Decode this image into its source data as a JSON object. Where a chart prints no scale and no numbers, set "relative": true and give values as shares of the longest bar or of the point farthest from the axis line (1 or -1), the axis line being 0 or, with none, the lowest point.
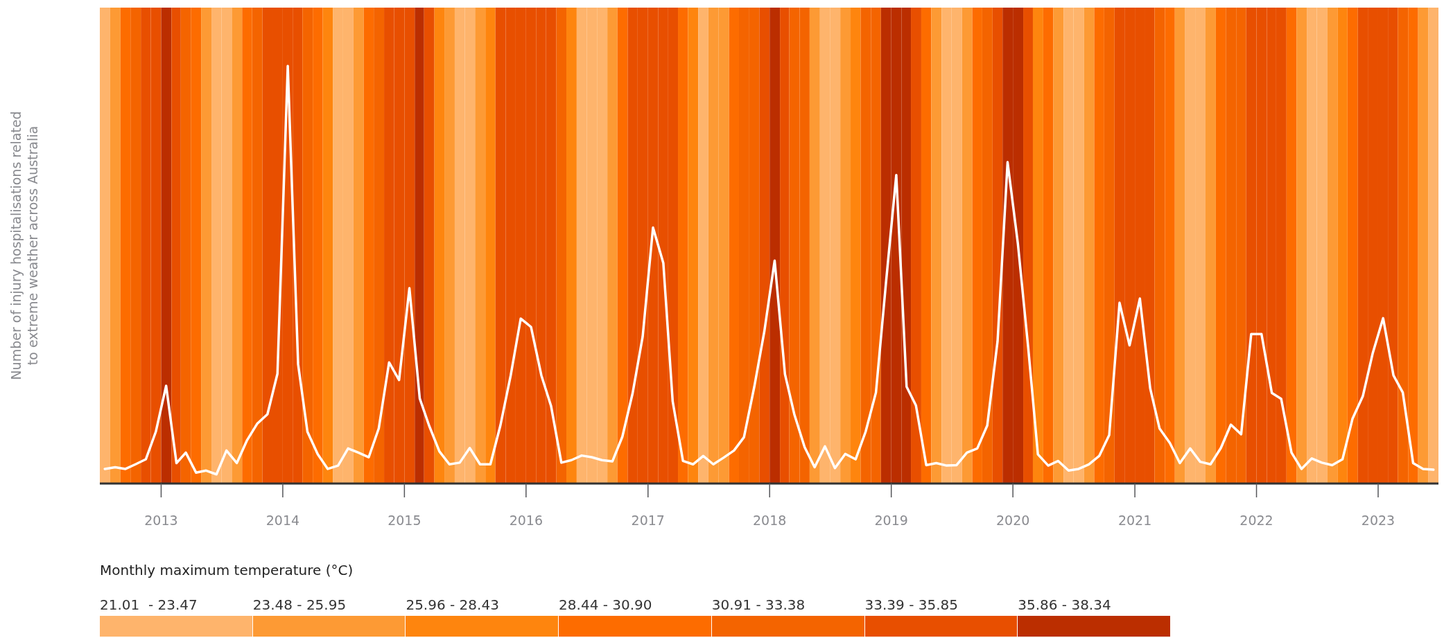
{
  "chart_data": {
    "type": "line",
    "relative": true,
    "ylabel": "Number of injury hospitalisations related\nto extreme weather across Australia",
    "xlim": [
      "2012-07-01",
      "2023-07-01"
    ],
    "xticks": [
      {
        "value": "2013-01-01",
        "label": "2013"
      },
      {
        "value": "2014-01-01",
        "label": "2014"
      },
      {
        "value": "2015-01-01",
        "label": "2015"
      },
      {
        "value": "2016-01-01",
        "label": "2016"
      },
      {
        "value": "2017-01-01",
        "label": "2017"
      },
      {
        "value": "2018-01-01",
        "label": "2018"
      },
      {
        "value": "2019-01-01",
        "label": "2019"
      },
      {
        "value": "2020-01-01",
        "label": "2020"
      },
      {
        "value": "2021-01-01",
        "label": "2021"
      },
      {
        "value": "2022-01-01",
        "label": "2022"
      },
      {
        "value": "2023-01-01",
        "label": "2023"
      }
    ],
    "x": [
      "2012-07-16",
      "2012-08-16",
      "2012-09-16",
      "2012-10-16",
      "2012-11-16",
      "2012-12-16",
      "2013-01-16",
      "2013-02-16",
      "2013-03-16",
      "2013-04-16",
      "2013-05-16",
      "2013-06-16",
      "2013-07-16",
      "2013-08-16",
      "2013-09-16",
      "2013-10-16",
      "2013-11-16",
      "2013-12-16",
      "2014-01-16",
      "2014-02-16",
      "2014-03-16",
      "2014-04-16",
      "2014-05-16",
      "2014-06-16",
      "2014-07-16",
      "2014-08-16",
      "2014-09-16",
      "2014-10-16",
      "2014-11-16",
      "2014-12-16",
      "2015-01-16",
      "2015-02-16",
      "2015-03-16",
      "2015-04-16",
      "2015-05-16",
      "2015-06-16",
      "2015-07-16",
      "2015-08-16",
      "2015-09-16",
      "2015-10-16",
      "2015-11-16",
      "2015-12-16",
      "2016-01-16",
      "2016-02-16",
      "2016-03-16",
      "2016-04-16",
      "2016-05-16",
      "2016-06-16",
      "2016-07-16",
      "2016-08-16",
      "2016-09-16",
      "2016-10-16",
      "2016-11-16",
      "2016-12-16",
      "2017-01-16",
      "2017-02-16",
      "2017-03-16",
      "2017-04-16",
      "2017-05-16",
      "2017-06-16",
      "2017-07-16",
      "2017-08-16",
      "2017-09-16",
      "2017-10-16",
      "2017-11-16",
      "2017-12-16",
      "2018-01-16",
      "2018-02-16",
      "2018-03-16",
      "2018-04-16",
      "2018-05-16",
      "2018-06-16",
      "2018-07-16",
      "2018-08-16",
      "2018-09-16",
      "2018-10-16",
      "2018-11-16",
      "2018-12-16",
      "2019-01-16",
      "2019-02-16",
      "2019-03-16",
      "2019-04-16",
      "2019-05-16",
      "2019-06-16",
      "2019-07-16",
      "2019-08-16",
      "2019-09-16",
      "2019-10-16",
      "2019-11-16",
      "2019-12-16",
      "2020-01-16",
      "2020-02-16",
      "2020-03-16",
      "2020-04-16",
      "2020-05-16",
      "2020-06-16",
      "2020-07-16",
      "2020-08-16",
      "2020-09-16",
      "2020-10-16",
      "2020-11-16",
      "2020-12-16",
      "2021-01-16",
      "2021-02-16",
      "2021-03-16",
      "2021-04-16",
      "2021-05-16",
      "2021-06-16",
      "2021-07-16",
      "2021-08-16",
      "2021-09-16",
      "2021-10-16",
      "2021-11-16",
      "2021-12-16",
      "2022-01-16",
      "2022-02-16",
      "2022-03-16",
      "2022-04-16",
      "2022-05-16",
      "2022-06-16",
      "2022-07-16",
      "2022-08-16",
      "2022-09-16",
      "2022-10-16",
      "2022-11-16",
      "2022-12-16",
      "2023-01-16",
      "2023-02-16",
      "2023-03-16",
      "2023-04-16",
      "2023-05-16",
      "2023-06-16"
    ],
    "series": [
      {
        "color": "#ffffff",
        "values": [
          0.035,
          0.039,
          0.035,
          0.046,
          0.058,
          0.124,
          0.234,
          0.049,
          0.074,
          0.026,
          0.031,
          0.022,
          0.079,
          0.049,
          0.104,
          0.143,
          0.166,
          0.263,
          1,
          0.286,
          0.124,
          0.07,
          0.035,
          0.043,
          0.084,
          0.074,
          0.063,
          0.132,
          0.29,
          0.248,
          0.468,
          0.204,
          0.139,
          0.077,
          0.046,
          0.05,
          0.085,
          0.046,
          0.046,
          0.139,
          0.259,
          0.395,
          0.375,
          0.259,
          0.186,
          0.05,
          0.056,
          0.067,
          0.063,
          0.056,
          0.053,
          0.112,
          0.217,
          0.352,
          0.613,
          0.528,
          0.197,
          0.054,
          0.046,
          0.066,
          0.046,
          0.062,
          0.079,
          0.111,
          0.232,
          0.364,
          0.534,
          0.262,
          0.166,
          0.087,
          0.039,
          0.089,
          0.037,
          0.071,
          0.058,
          0.124,
          0.218,
          0.48,
          0.739,
          0.232,
          0.187,
          0.044,
          0.049,
          0.043,
          0.044,
          0.074,
          0.084,
          0.139,
          0.341,
          0.77,
          0.574,
          0.325,
          0.07,
          0.043,
          0.054,
          0.031,
          0.035,
          0.046,
          0.066,
          0.116,
          0.433,
          0.331,
          0.443,
          0.228,
          0.132,
          0.097,
          0.049,
          0.084,
          0.052,
          0.046,
          0.085,
          0.141,
          0.118,
          0.358,
          0.358,
          0.217,
          0.203,
          0.074,
          0.035,
          0.06,
          0.05,
          0.044,
          0.058,
          0.155,
          0.209,
          0.313,
          0.396,
          0.259,
          0.218,
          0.049,
          0.035,
          0.033
        ]
      }
    ],
    "annotations": [
      "Monthly maximum temperature (°C)",
      "21.01  - 23.47",
      "23.48 - 25.95",
      "25.96 - 28.43",
      "28.44 - 30.90",
      "30.91 - 33.38",
      "33.39 - 35.85",
      "35.86 - 38.34"
    ],
    "colors": [
      "#feb46c",
      "#fd9a34",
      "#fe850e",
      "#fd6c00",
      "#f46400",
      "#e84f00",
      "#bb2e00"
    ],
    "bands": [
      {
        "axis": "x",
        "from": "2012-07-01",
        "to": "2012-08-01",
        "color": "#feb46c"
      },
      {
        "axis": "x",
        "from": "2012-08-01",
        "to": "2012-09-01",
        "color": "#fd9a34"
      },
      {
        "axis": "x",
        "from": "2012-09-01",
        "to": "2012-10-01",
        "color": "#fd6c00"
      },
      {
        "axis": "x",
        "from": "2012-10-01",
        "to": "2012-11-01",
        "color": "#f46400"
      },
      {
        "axis": "x",
        "from": "2012-11-01",
        "to": "2012-12-01",
        "color": "#e84f00"
      },
      {
        "axis": "x",
        "from": "2012-12-01",
        "to": "2013-01-01",
        "color": "#e84f00"
      },
      {
        "axis": "x",
        "from": "2013-01-01",
        "to": "2013-02-01",
        "color": "#bb2e00"
      },
      {
        "axis": "x",
        "from": "2013-02-01",
        "to": "2013-03-01",
        "color": "#e84f00"
      },
      {
        "axis": "x",
        "from": "2013-03-01",
        "to": "2013-04-01",
        "color": "#f46400"
      },
      {
        "axis": "x",
        "from": "2013-04-01",
        "to": "2013-05-01",
        "color": "#fd6c00"
      },
      {
        "axis": "x",
        "from": "2013-05-01",
        "to": "2013-06-01",
        "color": "#fd9a34"
      },
      {
        "axis": "x",
        "from": "2013-06-01",
        "to": "2013-07-01",
        "color": "#feb46c"
      },
      {
        "axis": "x",
        "from": "2013-07-01",
        "to": "2013-08-01",
        "color": "#feb46c"
      },
      {
        "axis": "x",
        "from": "2013-08-01",
        "to": "2013-09-01",
        "color": "#fd9a34"
      },
      {
        "axis": "x",
        "from": "2013-09-01",
        "to": "2013-10-01",
        "color": "#fd6c00"
      },
      {
        "axis": "x",
        "from": "2013-10-01",
        "to": "2013-11-01",
        "color": "#f46400"
      },
      {
        "axis": "x",
        "from": "2013-11-01",
        "to": "2013-12-01",
        "color": "#e84f00"
      },
      {
        "axis": "x",
        "from": "2013-12-01",
        "to": "2014-01-01",
        "color": "#e84f00"
      },
      {
        "axis": "x",
        "from": "2014-01-01",
        "to": "2014-02-01",
        "color": "#e84f00"
      },
      {
        "axis": "x",
        "from": "2014-02-01",
        "to": "2014-03-01",
        "color": "#e84f00"
      },
      {
        "axis": "x",
        "from": "2014-03-01",
        "to": "2014-04-01",
        "color": "#f46400"
      },
      {
        "axis": "x",
        "from": "2014-04-01",
        "to": "2014-05-01",
        "color": "#fd6c00"
      },
      {
        "axis": "x",
        "from": "2014-05-01",
        "to": "2014-06-01",
        "color": "#fe850e"
      },
      {
        "axis": "x",
        "from": "2014-06-01",
        "to": "2014-07-01",
        "color": "#feb46c"
      },
      {
        "axis": "x",
        "from": "2014-07-01",
        "to": "2014-08-01",
        "color": "#feb46c"
      },
      {
        "axis": "x",
        "from": "2014-08-01",
        "to": "2014-09-01",
        "color": "#fd9a34"
      },
      {
        "axis": "x",
        "from": "2014-09-01",
        "to": "2014-10-01",
        "color": "#fd6c00"
      },
      {
        "axis": "x",
        "from": "2014-10-01",
        "to": "2014-11-01",
        "color": "#f46400"
      },
      {
        "axis": "x",
        "from": "2014-11-01",
        "to": "2014-12-01",
        "color": "#e84f00"
      },
      {
        "axis": "x",
        "from": "2014-12-01",
        "to": "2015-01-01",
        "color": "#e84f00"
      },
      {
        "axis": "x",
        "from": "2015-01-01",
        "to": "2015-02-01",
        "color": "#e84f00"
      },
      {
        "axis": "x",
        "from": "2015-02-01",
        "to": "2015-03-01",
        "color": "#bb2e00"
      },
      {
        "axis": "x",
        "from": "2015-03-01",
        "to": "2015-04-01",
        "color": "#e84f00"
      },
      {
        "axis": "x",
        "from": "2015-04-01",
        "to": "2015-05-01",
        "color": "#fe850e"
      },
      {
        "axis": "x",
        "from": "2015-05-01",
        "to": "2015-06-01",
        "color": "#fd9a34"
      },
      {
        "axis": "x",
        "from": "2015-06-01",
        "to": "2015-07-01",
        "color": "#feb46c"
      },
      {
        "axis": "x",
        "from": "2015-07-01",
        "to": "2015-08-01",
        "color": "#feb46c"
      },
      {
        "axis": "x",
        "from": "2015-08-01",
        "to": "2015-09-01",
        "color": "#fd9a34"
      },
      {
        "axis": "x",
        "from": "2015-09-01",
        "to": "2015-10-01",
        "color": "#fe850e"
      },
      {
        "axis": "x",
        "from": "2015-10-01",
        "to": "2015-11-01",
        "color": "#e84f00"
      },
      {
        "axis": "x",
        "from": "2015-11-01",
        "to": "2015-12-01",
        "color": "#e84f00"
      },
      {
        "axis": "x",
        "from": "2015-12-01",
        "to": "2016-01-01",
        "color": "#e84f00"
      },
      {
        "axis": "x",
        "from": "2016-01-01",
        "to": "2016-02-01",
        "color": "#e84f00"
      },
      {
        "axis": "x",
        "from": "2016-02-01",
        "to": "2016-03-01",
        "color": "#e84f00"
      },
      {
        "axis": "x",
        "from": "2016-03-01",
        "to": "2016-04-01",
        "color": "#e84f00"
      },
      {
        "axis": "x",
        "from": "2016-04-01",
        "to": "2016-05-01",
        "color": "#f46400"
      },
      {
        "axis": "x",
        "from": "2016-05-01",
        "to": "2016-06-01",
        "color": "#fe850e"
      },
      {
        "axis": "x",
        "from": "2016-06-01",
        "to": "2016-07-01",
        "color": "#feb46c"
      },
      {
        "axis": "x",
        "from": "2016-07-01",
        "to": "2016-08-01",
        "color": "#feb46c"
      },
      {
        "axis": "x",
        "from": "2016-08-01",
        "to": "2016-09-01",
        "color": "#feb46c"
      },
      {
        "axis": "x",
        "from": "2016-09-01",
        "to": "2016-10-01",
        "color": "#fd9a34"
      },
      {
        "axis": "x",
        "from": "2016-10-01",
        "to": "2016-11-01",
        "color": "#fd6c00"
      },
      {
        "axis": "x",
        "from": "2016-11-01",
        "to": "2016-12-01",
        "color": "#e84f00"
      },
      {
        "axis": "x",
        "from": "2016-12-01",
        "to": "2017-01-01",
        "color": "#e84f00"
      },
      {
        "axis": "x",
        "from": "2017-01-01",
        "to": "2017-02-01",
        "color": "#e84f00"
      },
      {
        "axis": "x",
        "from": "2017-02-01",
        "to": "2017-03-01",
        "color": "#e84f00"
      },
      {
        "axis": "x",
        "from": "2017-03-01",
        "to": "2017-04-01",
        "color": "#e84f00"
      },
      {
        "axis": "x",
        "from": "2017-04-01",
        "to": "2017-05-01",
        "color": "#fd6c00"
      },
      {
        "axis": "x",
        "from": "2017-05-01",
        "to": "2017-06-01",
        "color": "#fe850e"
      },
      {
        "axis": "x",
        "from": "2017-06-01",
        "to": "2017-07-01",
        "color": "#feb46c"
      },
      {
        "axis": "x",
        "from": "2017-07-01",
        "to": "2017-08-01",
        "color": "#fd9a34"
      },
      {
        "axis": "x",
        "from": "2017-08-01",
        "to": "2017-09-01",
        "color": "#fd9a34"
      },
      {
        "axis": "x",
        "from": "2017-09-01",
        "to": "2017-10-01",
        "color": "#fd6c00"
      },
      {
        "axis": "x",
        "from": "2017-10-01",
        "to": "2017-11-01",
        "color": "#f46400"
      },
      {
        "axis": "x",
        "from": "2017-11-01",
        "to": "2017-12-01",
        "color": "#f46400"
      },
      {
        "axis": "x",
        "from": "2017-12-01",
        "to": "2018-01-01",
        "color": "#e84f00"
      },
      {
        "axis": "x",
        "from": "2018-01-01",
        "to": "2018-02-01",
        "color": "#bb2e00"
      },
      {
        "axis": "x",
        "from": "2018-02-01",
        "to": "2018-03-01",
        "color": "#e84f00"
      },
      {
        "axis": "x",
        "from": "2018-03-01",
        "to": "2018-04-01",
        "color": "#f46400"
      },
      {
        "axis": "x",
        "from": "2018-04-01",
        "to": "2018-05-01",
        "color": "#f46400"
      },
      {
        "axis": "x",
        "from": "2018-05-01",
        "to": "2018-06-01",
        "color": "#fd9a34"
      },
      {
        "axis": "x",
        "from": "2018-06-01",
        "to": "2018-07-01",
        "color": "#feb46c"
      },
      {
        "axis": "x",
        "from": "2018-07-01",
        "to": "2018-08-01",
        "color": "#feb46c"
      },
      {
        "axis": "x",
        "from": "2018-08-01",
        "to": "2018-09-01",
        "color": "#fd9a34"
      },
      {
        "axis": "x",
        "from": "2018-09-01",
        "to": "2018-10-01",
        "color": "#fe850e"
      },
      {
        "axis": "x",
        "from": "2018-10-01",
        "to": "2018-11-01",
        "color": "#f46400"
      },
      {
        "axis": "x",
        "from": "2018-11-01",
        "to": "2018-12-01",
        "color": "#f46400"
      },
      {
        "axis": "x",
        "from": "2018-12-01",
        "to": "2019-01-01",
        "color": "#bb2e00"
      },
      {
        "axis": "x",
        "from": "2019-01-01",
        "to": "2019-02-01",
        "color": "#bb2e00"
      },
      {
        "axis": "x",
        "from": "2019-02-01",
        "to": "2019-03-01",
        "color": "#bb2e00"
      },
      {
        "axis": "x",
        "from": "2019-03-01",
        "to": "2019-04-01",
        "color": "#e84f00"
      },
      {
        "axis": "x",
        "from": "2019-04-01",
        "to": "2019-05-01",
        "color": "#fd6c00"
      },
      {
        "axis": "x",
        "from": "2019-05-01",
        "to": "2019-06-01",
        "color": "#fd9a34"
      },
      {
        "axis": "x",
        "from": "2019-06-01",
        "to": "2019-07-01",
        "color": "#feb46c"
      },
      {
        "axis": "x",
        "from": "2019-07-01",
        "to": "2019-08-01",
        "color": "#feb46c"
      },
      {
        "axis": "x",
        "from": "2019-08-01",
        "to": "2019-09-01",
        "color": "#fd9a34"
      },
      {
        "axis": "x",
        "from": "2019-09-01",
        "to": "2019-10-01",
        "color": "#fd6c00"
      },
      {
        "axis": "x",
        "from": "2019-10-01",
        "to": "2019-11-01",
        "color": "#f46400"
      },
      {
        "axis": "x",
        "from": "2019-11-01",
        "to": "2019-12-01",
        "color": "#e84f00"
      },
      {
        "axis": "x",
        "from": "2019-12-01",
        "to": "2020-01-01",
        "color": "#bb2e00"
      },
      {
        "axis": "x",
        "from": "2020-01-01",
        "to": "2020-02-01",
        "color": "#bb2e00"
      },
      {
        "axis": "x",
        "from": "2020-02-01",
        "to": "2020-03-01",
        "color": "#e84f00"
      },
      {
        "axis": "x",
        "from": "2020-03-01",
        "to": "2020-04-01",
        "color": "#fe850e"
      },
      {
        "axis": "x",
        "from": "2020-04-01",
        "to": "2020-05-01",
        "color": "#fd6c00"
      },
      {
        "axis": "x",
        "from": "2020-05-01",
        "to": "2020-06-01",
        "color": "#fd9a34"
      },
      {
        "axis": "x",
        "from": "2020-06-01",
        "to": "2020-07-01",
        "color": "#feb46c"
      },
      {
        "axis": "x",
        "from": "2020-07-01",
        "to": "2020-08-01",
        "color": "#feb46c"
      },
      {
        "axis": "x",
        "from": "2020-08-01",
        "to": "2020-09-01",
        "color": "#fd9a34"
      },
      {
        "axis": "x",
        "from": "2020-09-01",
        "to": "2020-10-01",
        "color": "#fd6c00"
      },
      {
        "axis": "x",
        "from": "2020-10-01",
        "to": "2020-11-01",
        "color": "#f46400"
      },
      {
        "axis": "x",
        "from": "2020-11-01",
        "to": "2020-12-01",
        "color": "#e84f00"
      },
      {
        "axis": "x",
        "from": "2020-12-01",
        "to": "2021-01-01",
        "color": "#e84f00"
      },
      {
        "axis": "x",
        "from": "2021-01-01",
        "to": "2021-02-01",
        "color": "#e84f00"
      },
      {
        "axis": "x",
        "from": "2021-02-01",
        "to": "2021-03-01",
        "color": "#e84f00"
      },
      {
        "axis": "x",
        "from": "2021-03-01",
        "to": "2021-04-01",
        "color": "#f46400"
      },
      {
        "axis": "x",
        "from": "2021-04-01",
        "to": "2021-05-01",
        "color": "#fd6c00"
      },
      {
        "axis": "x",
        "from": "2021-05-01",
        "to": "2021-06-01",
        "color": "#fd9a34"
      },
      {
        "axis": "x",
        "from": "2021-06-01",
        "to": "2021-07-01",
        "color": "#feb46c"
      },
      {
        "axis": "x",
        "from": "2021-07-01",
        "to": "2021-08-01",
        "color": "#feb46c"
      },
      {
        "axis": "x",
        "from": "2021-08-01",
        "to": "2021-09-01",
        "color": "#fd9a34"
      },
      {
        "axis": "x",
        "from": "2021-09-01",
        "to": "2021-10-01",
        "color": "#fd6c00"
      },
      {
        "axis": "x",
        "from": "2021-10-01",
        "to": "2021-11-01",
        "color": "#f46400"
      },
      {
        "axis": "x",
        "from": "2021-11-01",
        "to": "2021-12-01",
        "color": "#f46400"
      },
      {
        "axis": "x",
        "from": "2021-12-01",
        "to": "2022-01-01",
        "color": "#e84f00"
      },
      {
        "axis": "x",
        "from": "2022-01-01",
        "to": "2022-02-01",
        "color": "#e84f00"
      },
      {
        "axis": "x",
        "from": "2022-02-01",
        "to": "2022-03-01",
        "color": "#e84f00"
      },
      {
        "axis": "x",
        "from": "2022-03-01",
        "to": "2022-04-01",
        "color": "#e84f00"
      },
      {
        "axis": "x",
        "from": "2022-04-01",
        "to": "2022-05-01",
        "color": "#fd6c00"
      },
      {
        "axis": "x",
        "from": "2022-05-01",
        "to": "2022-06-01",
        "color": "#fd9a34"
      },
      {
        "axis": "x",
        "from": "2022-06-01",
        "to": "2022-07-01",
        "color": "#feb46c"
      },
      {
        "axis": "x",
        "from": "2022-07-01",
        "to": "2022-08-01",
        "color": "#feb46c"
      },
      {
        "axis": "x",
        "from": "2022-08-01",
        "to": "2022-09-01",
        "color": "#fd9a34"
      },
      {
        "axis": "x",
        "from": "2022-09-01",
        "to": "2022-10-01",
        "color": "#fe850e"
      },
      {
        "axis": "x",
        "from": "2022-10-01",
        "to": "2022-11-01",
        "color": "#fd6c00"
      },
      {
        "axis": "x",
        "from": "2022-11-01",
        "to": "2022-12-01",
        "color": "#e84f00"
      },
      {
        "axis": "x",
        "from": "2022-12-01",
        "to": "2023-01-01",
        "color": "#e84f00"
      },
      {
        "axis": "x",
        "from": "2023-01-01",
        "to": "2023-02-01",
        "color": "#e84f00"
      },
      {
        "axis": "x",
        "from": "2023-02-01",
        "to": "2023-03-01",
        "color": "#e84f00"
      },
      {
        "axis": "x",
        "from": "2023-03-01",
        "to": "2023-04-01",
        "color": "#f46400"
      },
      {
        "axis": "x",
        "from": "2023-04-01",
        "to": "2023-05-01",
        "color": "#fd6c00"
      },
      {
        "axis": "x",
        "from": "2023-05-01",
        "to": "2023-06-01",
        "color": "#fd9a34"
      },
      {
        "axis": "x",
        "from": "2023-06-01",
        "to": "2023-07-01",
        "color": "#feb46c"
      }
    ]
  }
}
